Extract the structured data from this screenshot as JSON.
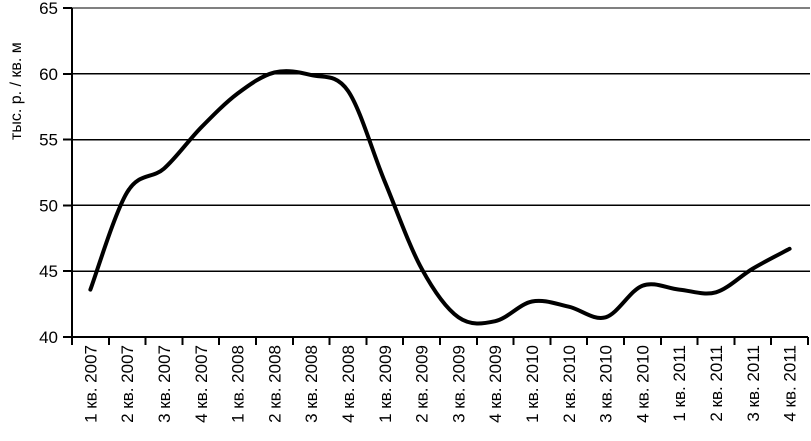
{
  "chart_data": {
    "type": "line",
    "title": "",
    "xlabel": "",
    "ylabel": "тыс. р. / кв. м",
    "categories": [
      "1 кв. 2007",
      "2 кв. 2007",
      "3 кв. 2007",
      "4 кв. 2007",
      "1 кв. 2008",
      "2 кв. 2008",
      "3 кв. 2008",
      "4 кв. 2008",
      "1 кв. 2009",
      "2 кв. 2009",
      "3 кв. 2009",
      "4 кв. 2009",
      "1 кв. 2010",
      "2 кв. 2010",
      "3 кв. 2010",
      "4 кв. 2010",
      "1 кв. 2011",
      "2 кв. 2011",
      "3 кв. 2011",
      "4 кв. 2011"
    ],
    "values": [
      43.6,
      51.0,
      52.8,
      55.9,
      58.5,
      60.1,
      59.9,
      58.7,
      51.8,
      45.2,
      41.5,
      41.2,
      42.7,
      42.3,
      41.5,
      43.9,
      43.6,
      43.4,
      45.2,
      46.7
    ],
    "ylim": [
      40,
      65
    ],
    "yticks": [
      40,
      45,
      50,
      55,
      60,
      65
    ],
    "grid": "horizontal-gridlines",
    "legend": "none",
    "line_color": "#000000",
    "axis_color": "#000000",
    "smooth": true
  }
}
